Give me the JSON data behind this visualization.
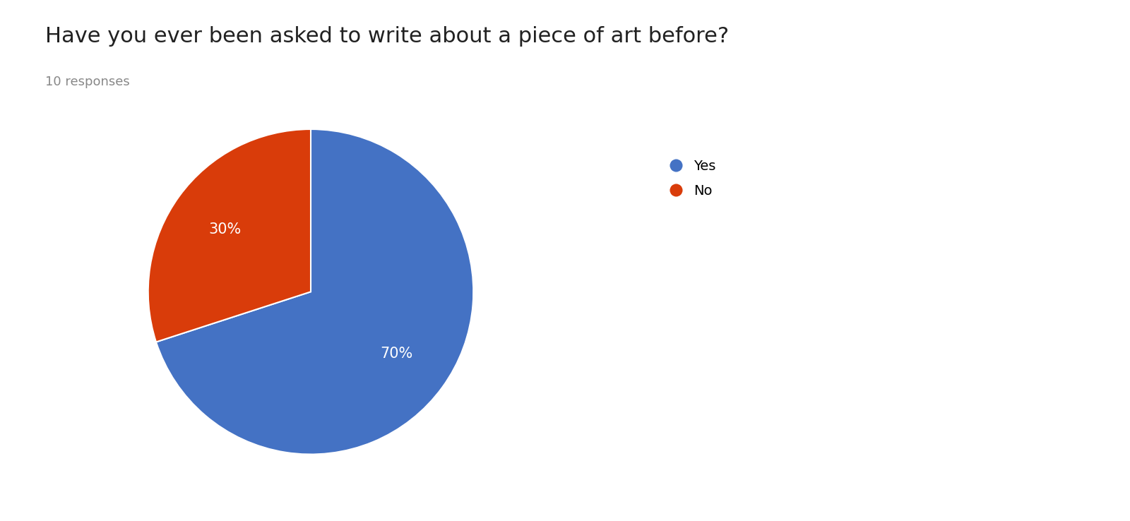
{
  "title": "Have you ever been asked to write about a piece of art before?",
  "subtitle": "10 responses",
  "labels": [
    "Yes",
    "No"
  ],
  "values": [
    70,
    30
  ],
  "colors": [
    "#4472c4",
    "#d93c0a"
  ],
  "title_fontsize": 22,
  "subtitle_fontsize": 13,
  "subtitle_color": "#888888",
  "pct_fontsize": 15,
  "legend_fontsize": 14,
  "background_color": "#ffffff",
  "text_color": "#ffffff",
  "startangle": 90,
  "counterclock": false
}
